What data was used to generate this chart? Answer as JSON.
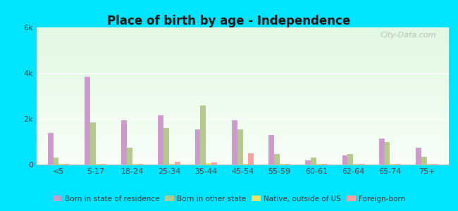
{
  "title": "Place of birth by age - Independence",
  "categories": [
    "<5",
    "5-17",
    "18-24",
    "25-34",
    "35-44",
    "45-54",
    "55-59",
    "60-61",
    "62-64",
    "65-74",
    "75+"
  ],
  "series": {
    "Born in state of residence": [
      1400,
      3850,
      1950,
      2150,
      1550,
      1950,
      1300,
      200,
      400,
      1150,
      750
    ],
    "Born in other state": [
      300,
      1850,
      750,
      1600,
      2600,
      1550,
      450,
      300,
      450,
      1000,
      350
    ],
    "Native, outside of US": [
      20,
      40,
      20,
      20,
      50,
      40,
      20,
      20,
      20,
      20,
      20
    ],
    "Foreign-born": [
      40,
      40,
      40,
      130,
      80,
      480,
      40,
      40,
      40,
      40,
      40
    ]
  },
  "colors": {
    "Born in state of residence": "#cc99cc",
    "Born in other state": "#b5c98e",
    "Native, outside of US": "#f0e060",
    "Foreign-born": "#f4a0a0"
  },
  "ylim": [
    0,
    6000
  ],
  "yticks": [
    0,
    2000,
    4000,
    6000
  ],
  "ytick_labels": [
    "0",
    "2k",
    "4k",
    "6k"
  ],
  "outer_bg": "#00e5ff",
  "bar_width": 0.15,
  "legend_items": [
    "Born in state of residence",
    "Born in other state",
    "Native, outside of US",
    "Foreign-born"
  ]
}
